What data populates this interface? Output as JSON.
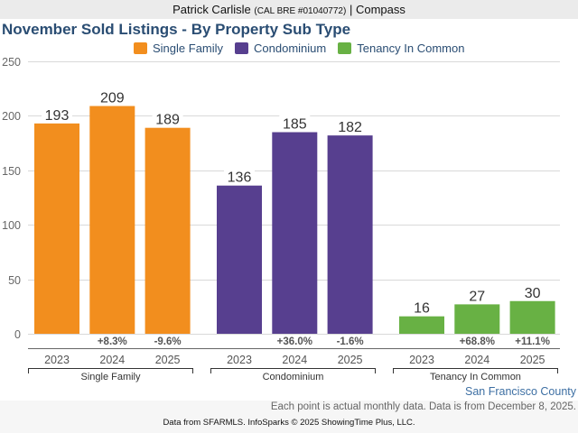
{
  "header": {
    "agent_name": "Patrick Carlisle",
    "license": "(CAL BRE #01040772)",
    "separator": "|",
    "brokerage": "Compass"
  },
  "colors": {
    "single_family": "#f28e1e",
    "condominium": "#573f8f",
    "tenancy_in_common": "#68b144",
    "title": "#2a4d73",
    "region": "#3d6fa3"
  },
  "chart_data": {
    "type": "bar",
    "title": "November Sold Listings - By Property Sub Type",
    "xlabel": "",
    "ylabel": "",
    "ylim": [
      0,
      250
    ],
    "yticks": [
      0,
      50,
      100,
      150,
      200,
      250
    ],
    "grid": true,
    "legend_position": "top-center",
    "legend": [
      "Single Family",
      "Condominium",
      "Tenancy In Common"
    ],
    "groups": [
      {
        "name": "Single Family",
        "color_key": "single_family",
        "categories": [
          "2023",
          "2024",
          "2025"
        ],
        "values": [
          193,
          209,
          189
        ],
        "changes": [
          "",
          "+8.3%",
          "-9.6%"
        ]
      },
      {
        "name": "Condominium",
        "color_key": "condominium",
        "categories": [
          "2023",
          "2024",
          "2025"
        ],
        "values": [
          136,
          185,
          182
        ],
        "changes": [
          "",
          "+36.0%",
          "-1.6%"
        ]
      },
      {
        "name": "Tenancy In Common",
        "color_key": "tenancy_in_common",
        "categories": [
          "2023",
          "2024",
          "2025"
        ],
        "values": [
          16,
          27,
          30
        ],
        "changes": [
          "",
          "+68.8%",
          "+11.1%"
        ]
      }
    ]
  },
  "footer": {
    "region": "San Francisco County",
    "note": "Each point is actual monthly data. Data is from December 8, 2025.",
    "credit": "Data from SFARMLS. InfoSparks © 2025 ShowingTime Plus, LLC."
  }
}
